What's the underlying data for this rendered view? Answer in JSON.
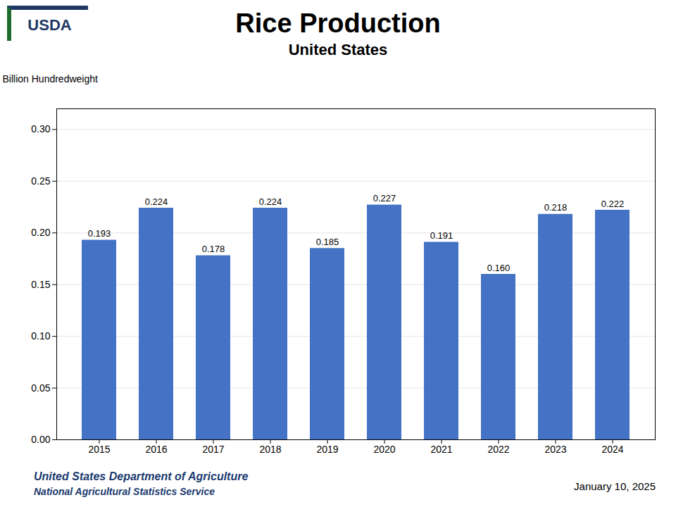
{
  "chart_data": {
    "type": "bar",
    "title": "Rice Production",
    "subtitle": "United States",
    "ylabel": "Billion Hundredweight",
    "categories": [
      "2015",
      "2016",
      "2017",
      "2018",
      "2019",
      "2020",
      "2021",
      "2022",
      "2023",
      "2024"
    ],
    "values": [
      0.193,
      0.224,
      0.178,
      0.224,
      0.185,
      0.227,
      0.191,
      0.16,
      0.218,
      0.222
    ],
    "value_labels": [
      "0.193",
      "0.224",
      "0.178",
      "0.224",
      "0.185",
      "0.227",
      "0.191",
      "0.160",
      "0.218",
      "0.222"
    ],
    "data_labels": true,
    "color": "#4472C4",
    "ylim": [
      0,
      0.32
    ],
    "yticks": [
      {
        "value": 0,
        "label": "0.00"
      },
      0.05,
      {
        "value": 0.1,
        "label": "0.10"
      },
      0.15,
      {
        "value": 0.2,
        "label": "0.20"
      },
      0.25,
      {
        "value": 0.3,
        "label": "0.30"
      }
    ],
    "grid": true,
    "annotations": [
      "USDA",
      "United States Department of Agriculture",
      "National Agricultural Statistics Service",
      "January 10, 2025"
    ]
  }
}
